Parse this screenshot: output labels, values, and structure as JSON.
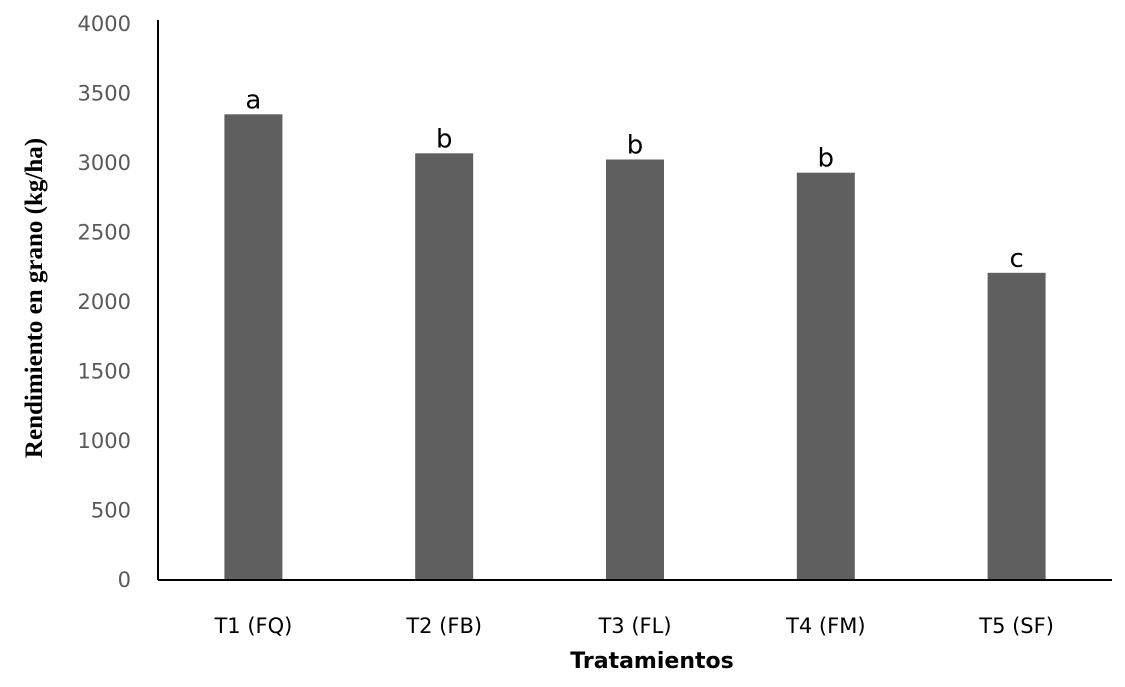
{
  "chart_data": {
    "type": "bar",
    "categories": [
      "T1 (FQ)",
      "T2 (FB)",
      "T3 (FL)",
      "T4 (FM)",
      "T5 (SF)"
    ],
    "values": [
      3350,
      3070,
      3025,
      2930,
      2210
    ],
    "significance_letters": [
      "a",
      "b",
      "b",
      "b",
      "c"
    ],
    "title": "",
    "xlabel": "Tratamientos",
    "ylabel": "Rendimiento en grano (kg/ha)",
    "ylim": [
      0,
      4000
    ],
    "yticks": [
      0,
      500,
      1000,
      1500,
      2000,
      2500,
      3000,
      3500,
      4000
    ],
    "grid": false,
    "legend": "none",
    "colors": {
      "bar": "#5f5f5f",
      "axis": "#000000",
      "tick_text": "#595959"
    }
  }
}
